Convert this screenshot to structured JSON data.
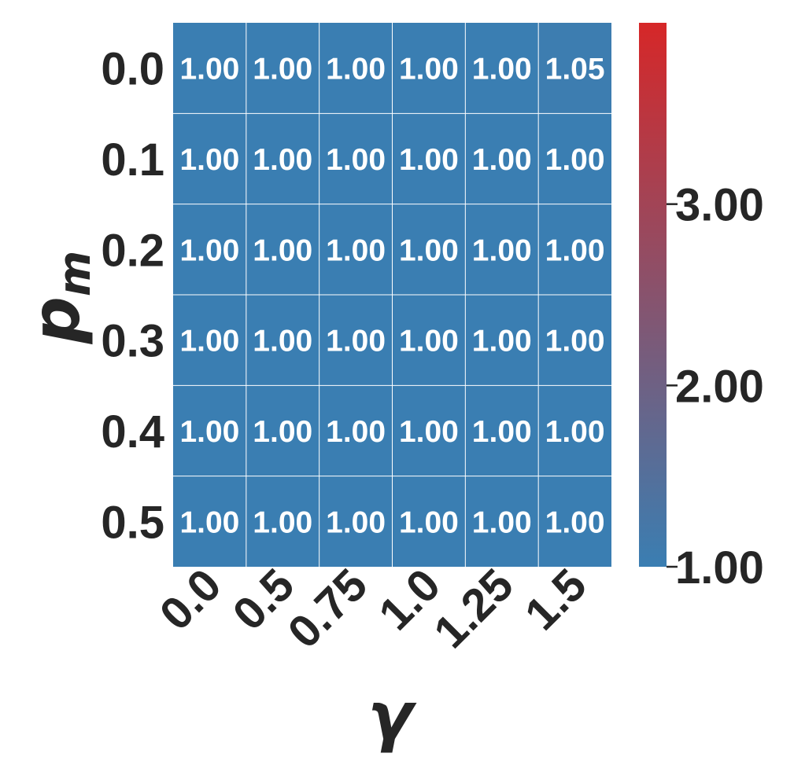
{
  "chart_data": {
    "type": "heatmap",
    "xlabel": "γ",
    "ylabel_main": "p",
    "ylabel_sub": "m",
    "x_categories": [
      "0.0",
      "0.5",
      "0.75",
      "1.0",
      "1.25",
      "1.5"
    ],
    "y_categories": [
      "0.0",
      "0.1",
      "0.2",
      "0.3",
      "0.4",
      "0.5"
    ],
    "values": [
      [
        1.0,
        1.0,
        1.0,
        1.0,
        1.0,
        1.05
      ],
      [
        1.0,
        1.0,
        1.0,
        1.0,
        1.0,
        1.0
      ],
      [
        1.0,
        1.0,
        1.0,
        1.0,
        1.0,
        1.0
      ],
      [
        1.0,
        1.0,
        1.0,
        1.0,
        1.0,
        1.0
      ],
      [
        1.0,
        1.0,
        1.0,
        1.0,
        1.0,
        1.0
      ],
      [
        1.0,
        1.0,
        1.0,
        1.0,
        1.0,
        1.0
      ]
    ],
    "annotations": [
      [
        "1.00",
        "1.00",
        "1.00",
        "1.00",
        "1.00",
        "1.05"
      ],
      [
        "1.00",
        "1.00",
        "1.00",
        "1.00",
        "1.00",
        "1.00"
      ],
      [
        "1.00",
        "1.00",
        "1.00",
        "1.00",
        "1.00",
        "1.00"
      ],
      [
        "1.00",
        "1.00",
        "1.00",
        "1.00",
        "1.00",
        "1.00"
      ],
      [
        "1.00",
        "1.00",
        "1.00",
        "1.00",
        "1.00",
        "1.00"
      ],
      [
        "1.00",
        "1.00",
        "1.00",
        "1.00",
        "1.00",
        "1.00"
      ]
    ],
    "colorbar": {
      "range": [
        1.0,
        4.0
      ],
      "ticks": [
        1.0,
        2.0,
        3.0
      ],
      "tick_labels": [
        "1.00",
        "2.00",
        "3.00"
      ],
      "color_low": "#3a7eb2",
      "color_high": "#d62728"
    },
    "grid_line_color": "#ffffff"
  }
}
